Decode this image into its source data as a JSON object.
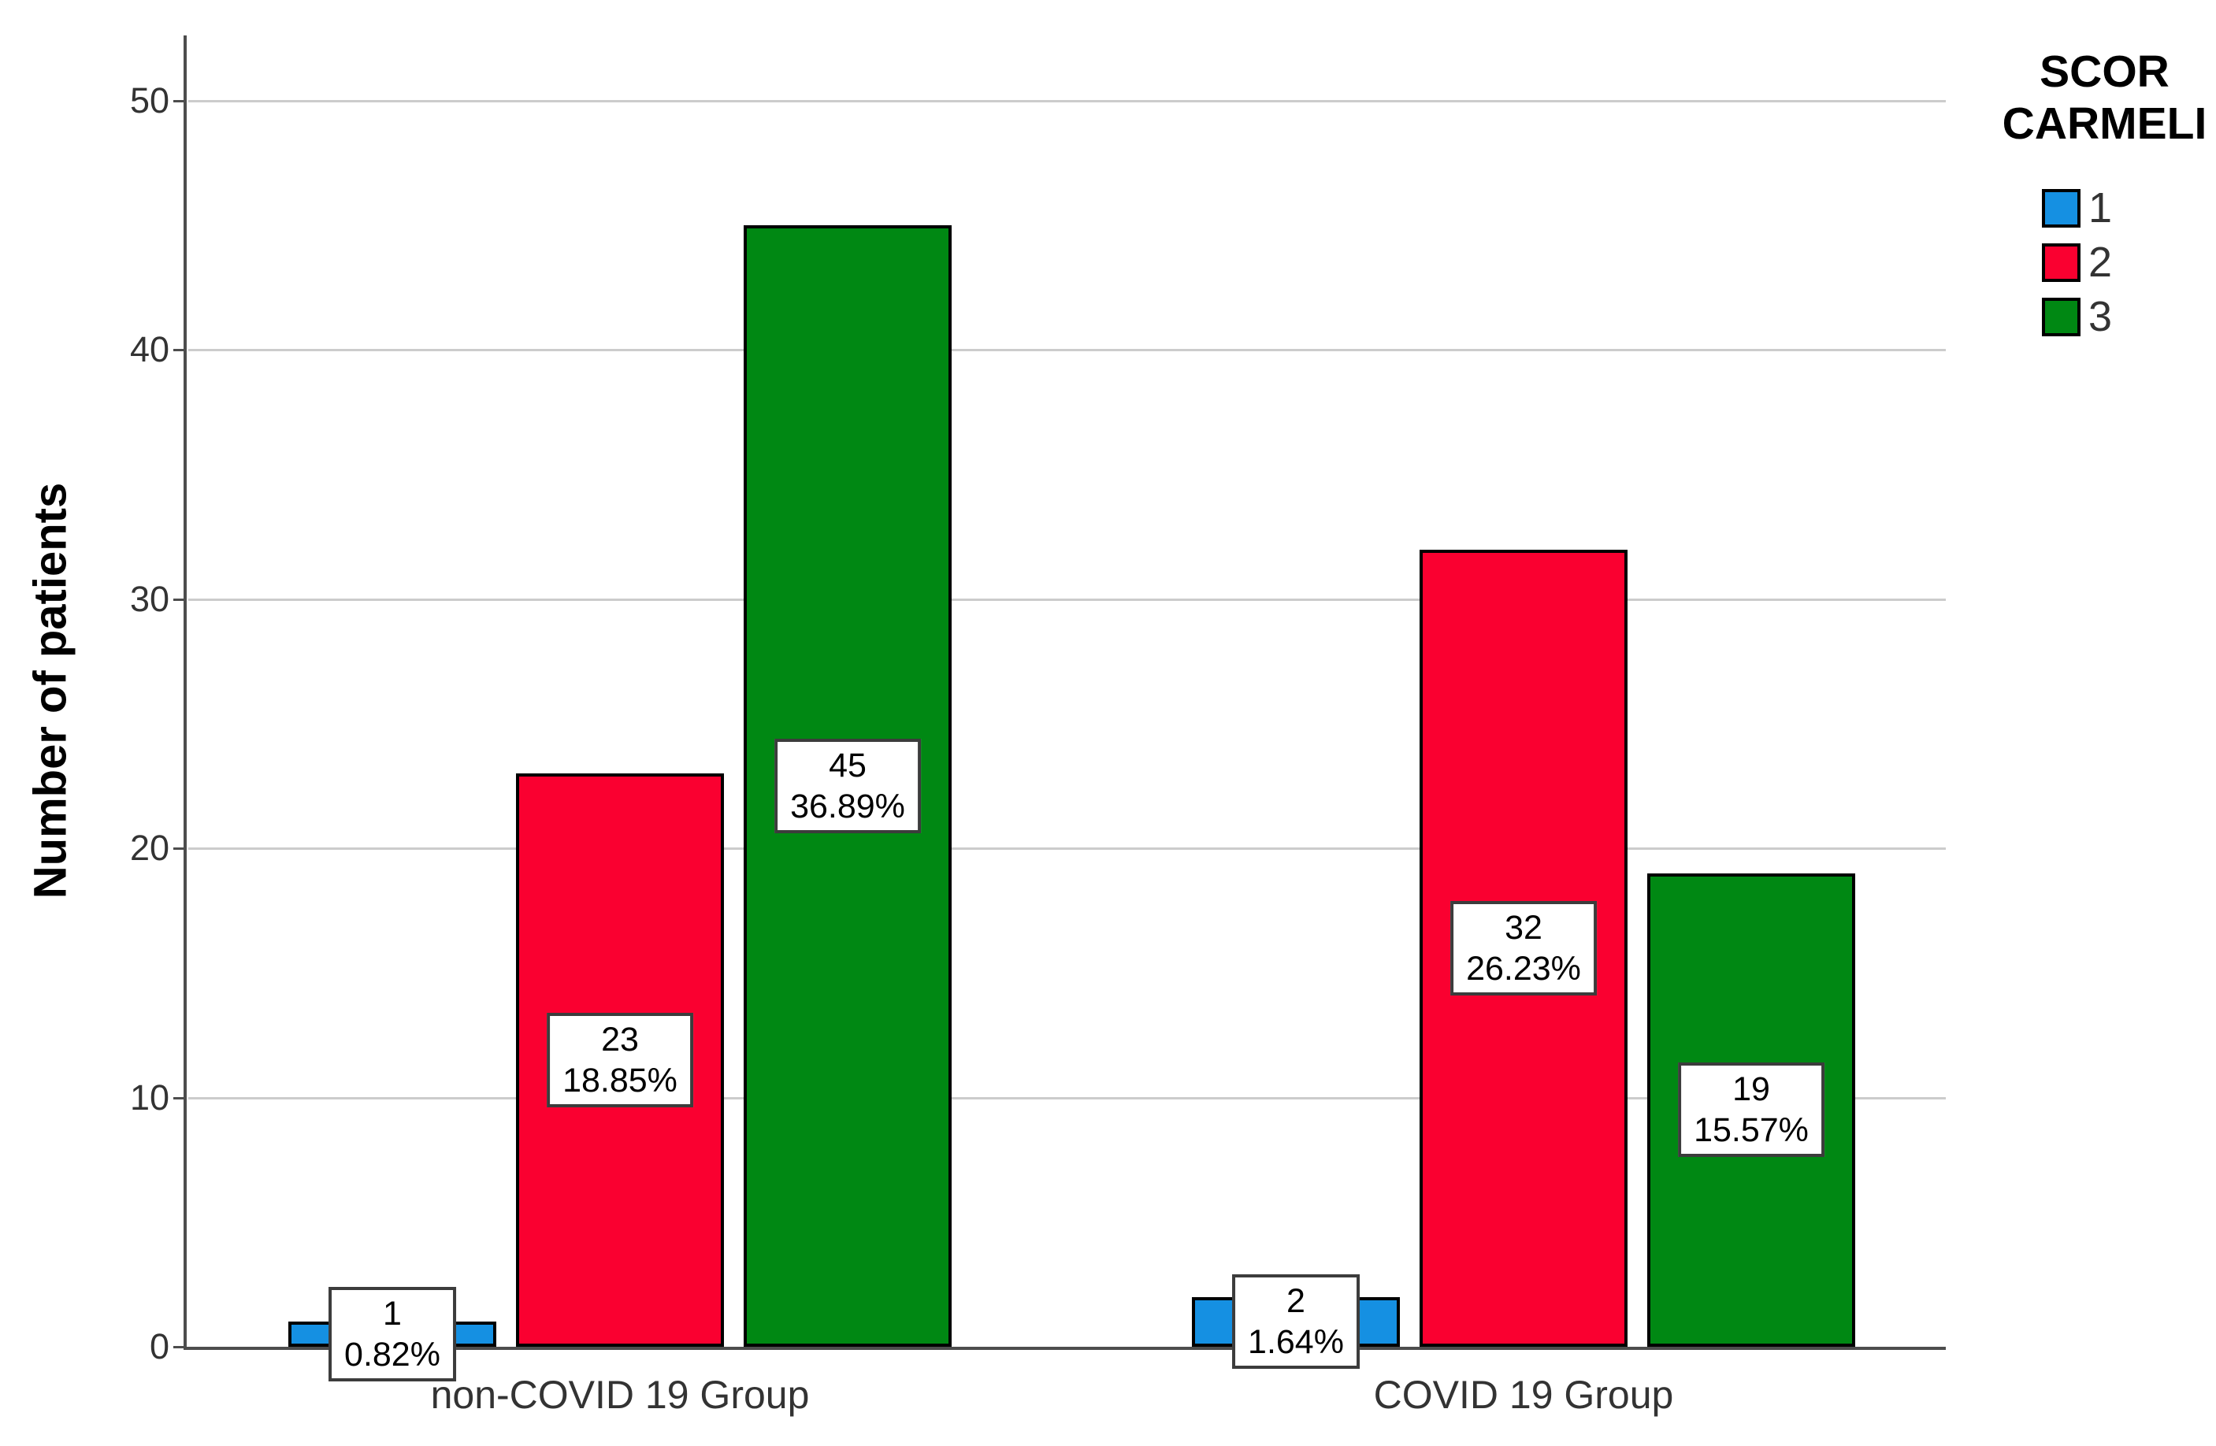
{
  "chart_data": {
    "type": "bar",
    "title": "",
    "ylabel": "Number of patients",
    "xlabel": "",
    "categories": [
      "non-COVID 19 Group",
      "COVID 19 Group"
    ],
    "series": [
      {
        "name": "1",
        "color": "#1590E2",
        "values": [
          1,
          2
        ],
        "percents": [
          "0.82%",
          "1.64%"
        ]
      },
      {
        "name": "2",
        "color": "#FA0030",
        "values": [
          23,
          32
        ],
        "percents": [
          "18.85%",
          "26.23%"
        ]
      },
      {
        "name": "3",
        "color": "#008813",
        "values": [
          45,
          19
        ],
        "percents": [
          "36.89%",
          "15.57%"
        ]
      }
    ],
    "y_ticks": [
      0,
      10,
      20,
      30,
      40,
      50
    ],
    "ylim": [
      0,
      52.6
    ],
    "grid": true,
    "legend": {
      "position": "top-right",
      "title": "SCOR CARMELI",
      "title_lines": [
        "SCOR",
        "CARMELI"
      ],
      "entries": [
        "1",
        "2",
        "3"
      ]
    },
    "colors": {
      "axis": "#4d4d4d",
      "gridline": "#cccccc",
      "bar_border": "#000000",
      "label_box_bg": "#ffffff",
      "label_box_border": "#3c3c3c",
      "tick_text": "#333333"
    }
  }
}
